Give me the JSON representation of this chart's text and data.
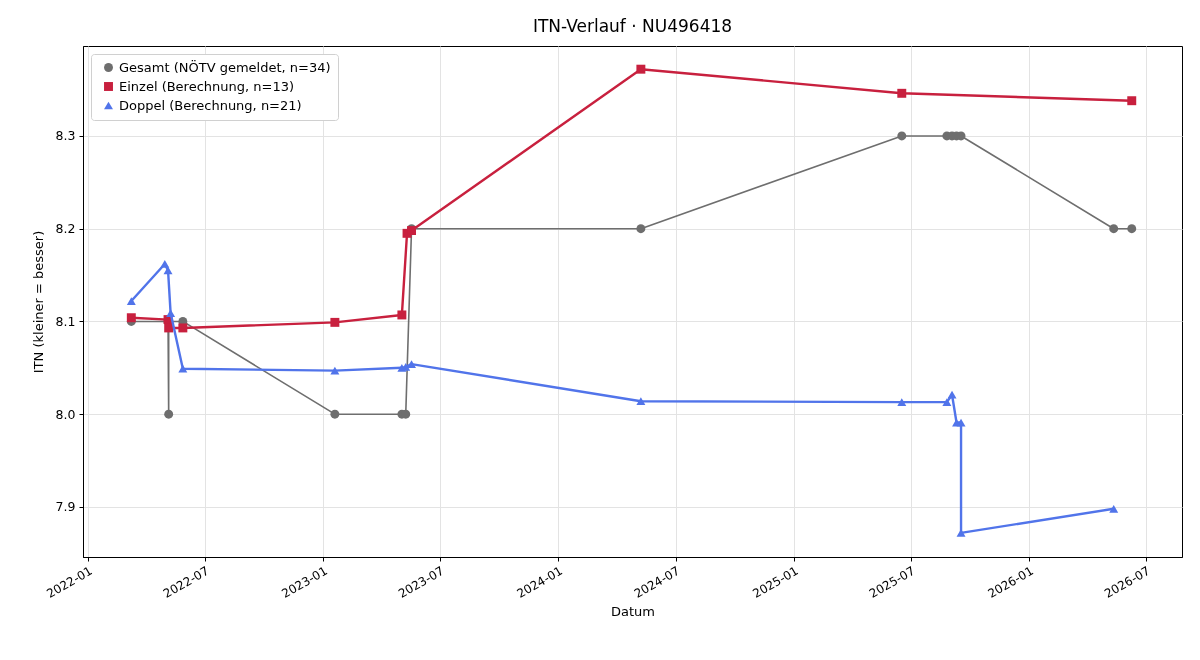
{
  "chart_data": {
    "type": "line",
    "title": "ITN-Verlauf · NU496418",
    "xlabel": "Datum",
    "ylabel": "ITN  (kleiner = besser)",
    "xlim": [
      "2021-12-24",
      "2026-08-26"
    ],
    "xticks": [
      "2022-01",
      "2022-07",
      "2023-01",
      "2023-07",
      "2024-01",
      "2024-07",
      "2025-01",
      "2025-07",
      "2026-01",
      "2026-07"
    ],
    "ylim": [
      7.846,
      8.397
    ],
    "yticks": [
      7.9,
      {
        "value": 8,
        "label": "8.0"
      },
      8.1,
      8.2,
      8.3
    ],
    "grid": true,
    "legend": "top left",
    "line_style": "solid",
    "series": [
      {
        "name": "Gesamt (NÖTV gemeldet, n=34)",
        "color": "#6e6e6e",
        "marker": "circle",
        "x": [
          "2022-03-09",
          "2022-05-05",
          "2022-05-06",
          "2022-05-06",
          "2022-05-28",
          "2023-01-19",
          "2023-05-03",
          "2023-05-09",
          "2023-05-18",
          "2024-05-08",
          "2025-06-17",
          "2025-08-26",
          "2025-09-03",
          "2025-09-10",
          "2025-09-17",
          "2026-05-12",
          "2026-06-09"
        ],
        "values": [
          8.1,
          8.1,
          8.0,
          8.1,
          8.1,
          8.0,
          8.0,
          8.0,
          8.2,
          8.2,
          8.3,
          8.3,
          8.3,
          8.3,
          8.3,
          8.2,
          8.2
        ]
      },
      {
        "name": "Einzel (Berechnung, n=13)",
        "color": "#c8203e",
        "marker": "square",
        "x": [
          "2022-03-09",
          "2022-05-05",
          "2022-05-06",
          "2022-05-28",
          "2023-01-19",
          "2023-05-03",
          "2023-05-11",
          "2023-05-18",
          "2024-05-08",
          "2025-06-17",
          "2026-06-09"
        ],
        "values": [
          8.104,
          8.102,
          8.093,
          8.093,
          8.099,
          8.107,
          8.195,
          8.198,
          8.372,
          8.346,
          8.338
        ]
      },
      {
        "name": "Doppel (Berechnung, n=21)",
        "color": "#5174ea",
        "marker": "triangle",
        "x": [
          "2022-03-09",
          "2022-04-30",
          "2022-05-05",
          "2022-05-09",
          "2022-05-28",
          "2023-01-19",
          "2023-05-03",
          "2023-05-09",
          "2023-05-18",
          "2024-05-08",
          "2025-06-17",
          "2025-08-26",
          "2025-09-03",
          "2025-09-10",
          "2025-09-17",
          "2025-09-17",
          "2026-05-12"
        ],
        "values": [
          8.122,
          8.162,
          8.155,
          8.109,
          8.049,
          8.047,
          8.05,
          8.051,
          8.054,
          8.014,
          8.013,
          8.013,
          8.021,
          7.991,
          7.991,
          7.872,
          7.898
        ]
      }
    ]
  }
}
